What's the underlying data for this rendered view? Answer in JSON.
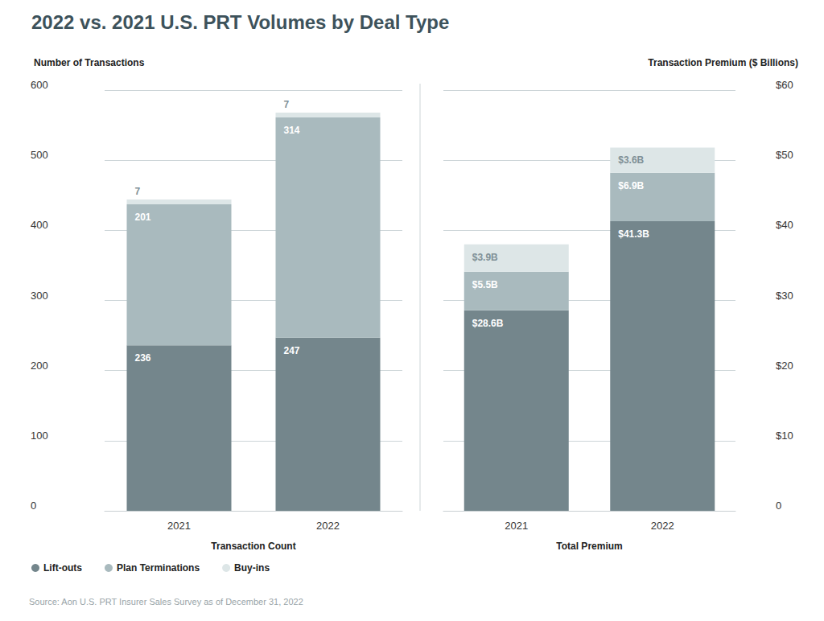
{
  "title": "2022 vs. 2021 U.S. PRT Volumes by Deal Type",
  "source": "Source: Aon U.S. PRT Insurer Sales Survey as of December 31, 2022",
  "chart_data": [
    {
      "type": "bar",
      "stacked": true,
      "data_labels": true,
      "grid": true,
      "legend": "bottom left",
      "xlabel": "Transaction Count",
      "ylabel": "Number of Transactions",
      "categories": [
        "2021",
        "2022"
      ],
      "ylim": [
        0,
        600
      ],
      "yticks": [
        0,
        100,
        200,
        300,
        400,
        500,
        600
      ],
      "series": [
        {
          "name": "Lift-outs",
          "color": "#74868c",
          "values": [
            236,
            247
          ]
        },
        {
          "name": "Plan Terminations",
          "color": "#a9babe",
          "values": [
            201,
            314
          ]
        },
        {
          "name": "Buy-ins",
          "color": "#dde6e7",
          "values": [
            7,
            7
          ]
        }
      ]
    },
    {
      "type": "bar",
      "stacked": true,
      "data_labels": true,
      "grid": true,
      "xlabel": "Total Premium",
      "ylabel": "Transaction Premium ($ Billions)",
      "categories": [
        "2021",
        "2022"
      ],
      "ylim": [
        0,
        60
      ],
      "yticks": [
        0,
        {
          "value": 10,
          "label": "$10"
        },
        {
          "value": 20,
          "label": "$20"
        },
        {
          "value": 30,
          "label": "$30"
        },
        {
          "value": 40,
          "label": "$40"
        },
        {
          "value": 50,
          "label": "$50"
        },
        {
          "value": 60,
          "label": "$60"
        }
      ],
      "series": [
        {
          "name": "Lift-outs",
          "color": "#74868c",
          "values": [
            28.6,
            41.3
          ],
          "value_labels": [
            "$28.6B",
            "$41.3B"
          ]
        },
        {
          "name": "Plan Terminations",
          "color": "#a9babe",
          "values": [
            5.5,
            6.9
          ],
          "value_labels": [
            "$5.5B",
            "$6.9B"
          ]
        },
        {
          "name": "Buy-ins",
          "color": "#dde6e7",
          "values": [
            3.9,
            3.6
          ],
          "value_labels": [
            "$3.9B",
            "$3.6B"
          ]
        }
      ]
    }
  ]
}
